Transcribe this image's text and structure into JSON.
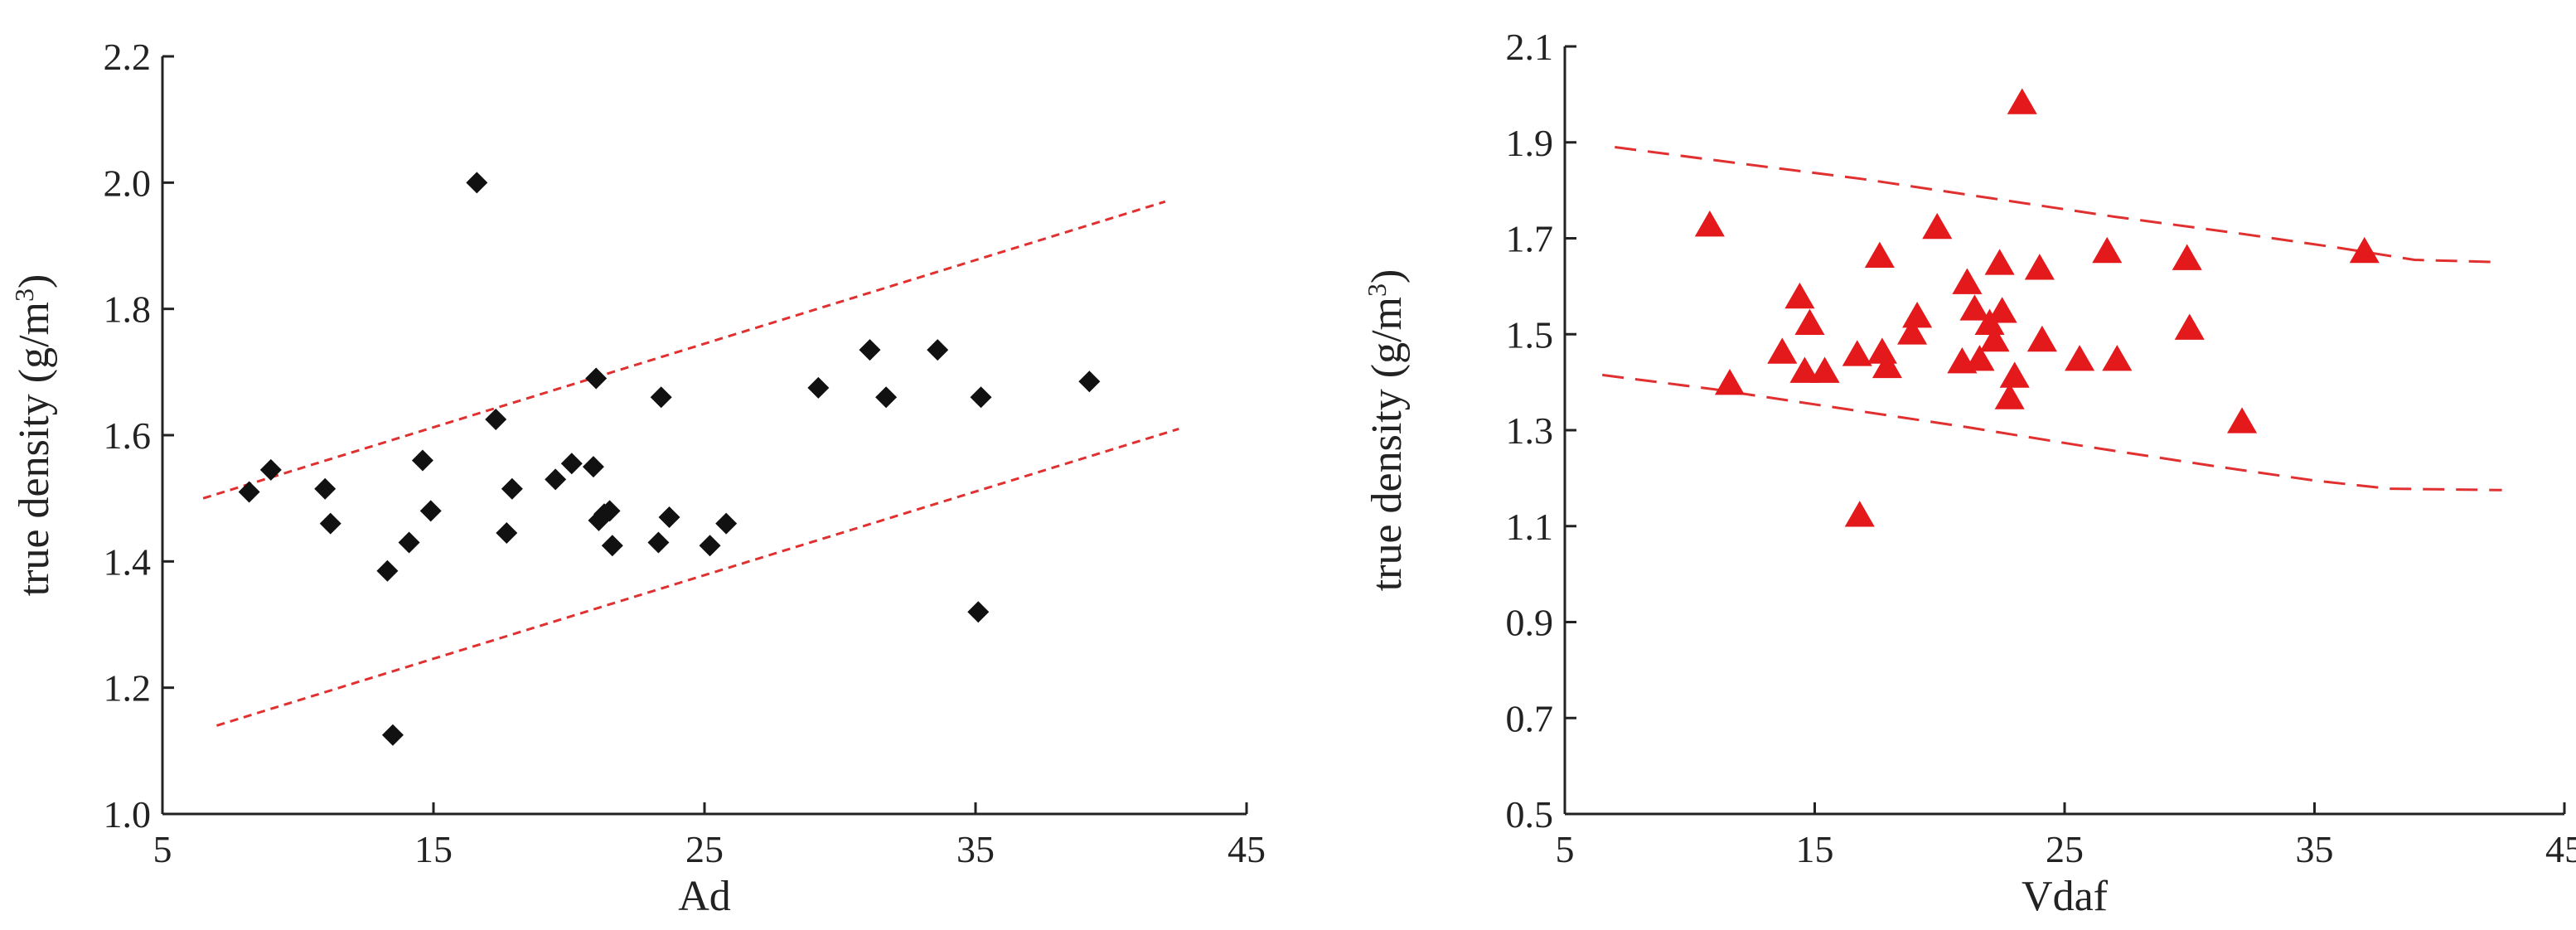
{
  "chart_data": [
    {
      "type": "scatter",
      "xlabel": "Ad",
      "ylabel": "true density (g/m3)",
      "ylabel_text": "true density (g/m",
      "ylabel_superscript": "3",
      "ylabel_close": ")",
      "xlim": [
        5,
        45
      ],
      "ylim": [
        1.0,
        2.2
      ],
      "xticks": [
        5,
        15,
        25,
        35,
        45
      ],
      "yticks": [
        1.0,
        1.2,
        1.4,
        1.6,
        1.8,
        2.0,
        2.2
      ],
      "x_tick_labels": [
        "5",
        "15",
        "25",
        "35",
        "45"
      ],
      "y_tick_labels": [
        "1.0",
        "1.2",
        "1.4",
        "1.6",
        "1.8",
        "2.0",
        "2.2"
      ],
      "marker": "diamond",
      "marker_color": "#111111",
      "grid": false,
      "series": [
        {
          "x": [
            8.2,
            9.0,
            11.0,
            11.2,
            13.3,
            14.1,
            14.6,
            14.9,
            16.6,
            17.3,
            17.7,
            17.9,
            19.5,
            20.1,
            20.9,
            21.0,
            21.1,
            21.3,
            21.5,
            21.6,
            23.3,
            23.4,
            23.7,
            25.2,
            25.8,
            29.2,
            31.1,
            31.7,
            33.6,
            35.1,
            35.2,
            39.2
          ],
          "y": [
            1.51,
            1.545,
            1.515,
            1.46,
            1.385,
            1.43,
            1.56,
            1.48,
            2.0,
            1.625,
            1.445,
            1.515,
            1.53,
            1.555,
            1.55,
            1.69,
            1.465,
            1.475,
            1.48,
            1.425,
            1.43,
            1.66,
            1.47,
            1.425,
            1.46,
            1.675,
            1.735,
            1.66,
            1.735,
            1.32,
            1.66,
            1.685
          ]
        },
        {
          "x": [
            13.5
          ],
          "y": [
            1.125
          ]
        }
      ],
      "bounds": [
        {
          "x": [
            6.5,
            42.0
          ],
          "y": [
            1.5,
            1.97
          ],
          "style": "dashed",
          "color": "#e03030"
        },
        {
          "x": [
            7.0,
            42.5
          ],
          "y": [
            1.14,
            1.61
          ],
          "style": "dashed",
          "color": "#e03030"
        }
      ]
    },
    {
      "type": "scatter",
      "xlabel": "Vdaf",
      "ylabel": "true density (g/m3)",
      "ylabel_text": "true density (g/m",
      "ylabel_superscript": "3",
      "ylabel_close": ")",
      "xlim": [
        5,
        45
      ],
      "ylim": [
        0.5,
        2.1
      ],
      "xticks": [
        5,
        15,
        25,
        35,
        45
      ],
      "yticks": [
        0.5,
        0.7,
        0.9,
        1.1,
        1.3,
        1.5,
        1.7,
        1.9,
        2.1
      ],
      "x_tick_labels": [
        "5",
        "15",
        "25",
        "35",
        "45"
      ],
      "y_tick_labels": [
        "0.5",
        "0.7",
        "0.9",
        "1.1",
        "1.3",
        "1.5",
        "1.7",
        "1.9",
        "2.1"
      ],
      "marker": "triangle",
      "marker_color": "#e3191c",
      "grid": false,
      "series": [
        {
          "x": [
            10.8,
            11.6,
            13.7,
            14.4,
            14.6,
            14.8,
            15.4,
            16.7,
            16.8,
            17.6,
            17.7,
            17.9,
            18.9,
            19.1,
            19.9,
            20.9,
            21.1,
            21.4,
            21.6,
            22.0,
            22.2,
            22.4,
            22.5,
            22.8,
            23.0,
            23.3,
            24.0,
            24.1,
            25.6,
            26.7,
            27.1,
            29.9,
            30.0,
            32.1,
            37.0
          ],
          "y": [
            1.725,
            1.395,
            1.46,
            1.575,
            1.42,
            1.52,
            1.42,
            1.455,
            1.12,
            1.66,
            1.46,
            1.43,
            1.5,
            1.535,
            1.72,
            1.44,
            1.605,
            1.55,
            1.445,
            1.52,
            1.485,
            1.645,
            1.545,
            1.365,
            1.41,
            1.98,
            1.635,
            1.485,
            1.445,
            1.67,
            1.445,
            1.655,
            1.51,
            1.315,
            1.67
          ]
        }
      ],
      "bounds": [
        {
          "x": [
            7.0,
            12.0,
            17.0,
            22.0,
            27.0,
            32.0,
            36.0,
            39.0,
            42.5
          ],
          "y": [
            1.89,
            1.856,
            1.823,
            1.784,
            1.745,
            1.71,
            1.68,
            1.655,
            1.65
          ],
          "style": "dashed",
          "color": "#e03030"
        },
        {
          "x": [
            6.5,
            11.0,
            16.0,
            21.0,
            26.0,
            31.0,
            35.0,
            38.0,
            42.5
          ],
          "y": [
            1.415,
            1.385,
            1.346,
            1.307,
            1.265,
            1.225,
            1.195,
            1.178,
            1.175
          ],
          "style": "dashed",
          "color": "#e03030"
        }
      ]
    }
  ]
}
